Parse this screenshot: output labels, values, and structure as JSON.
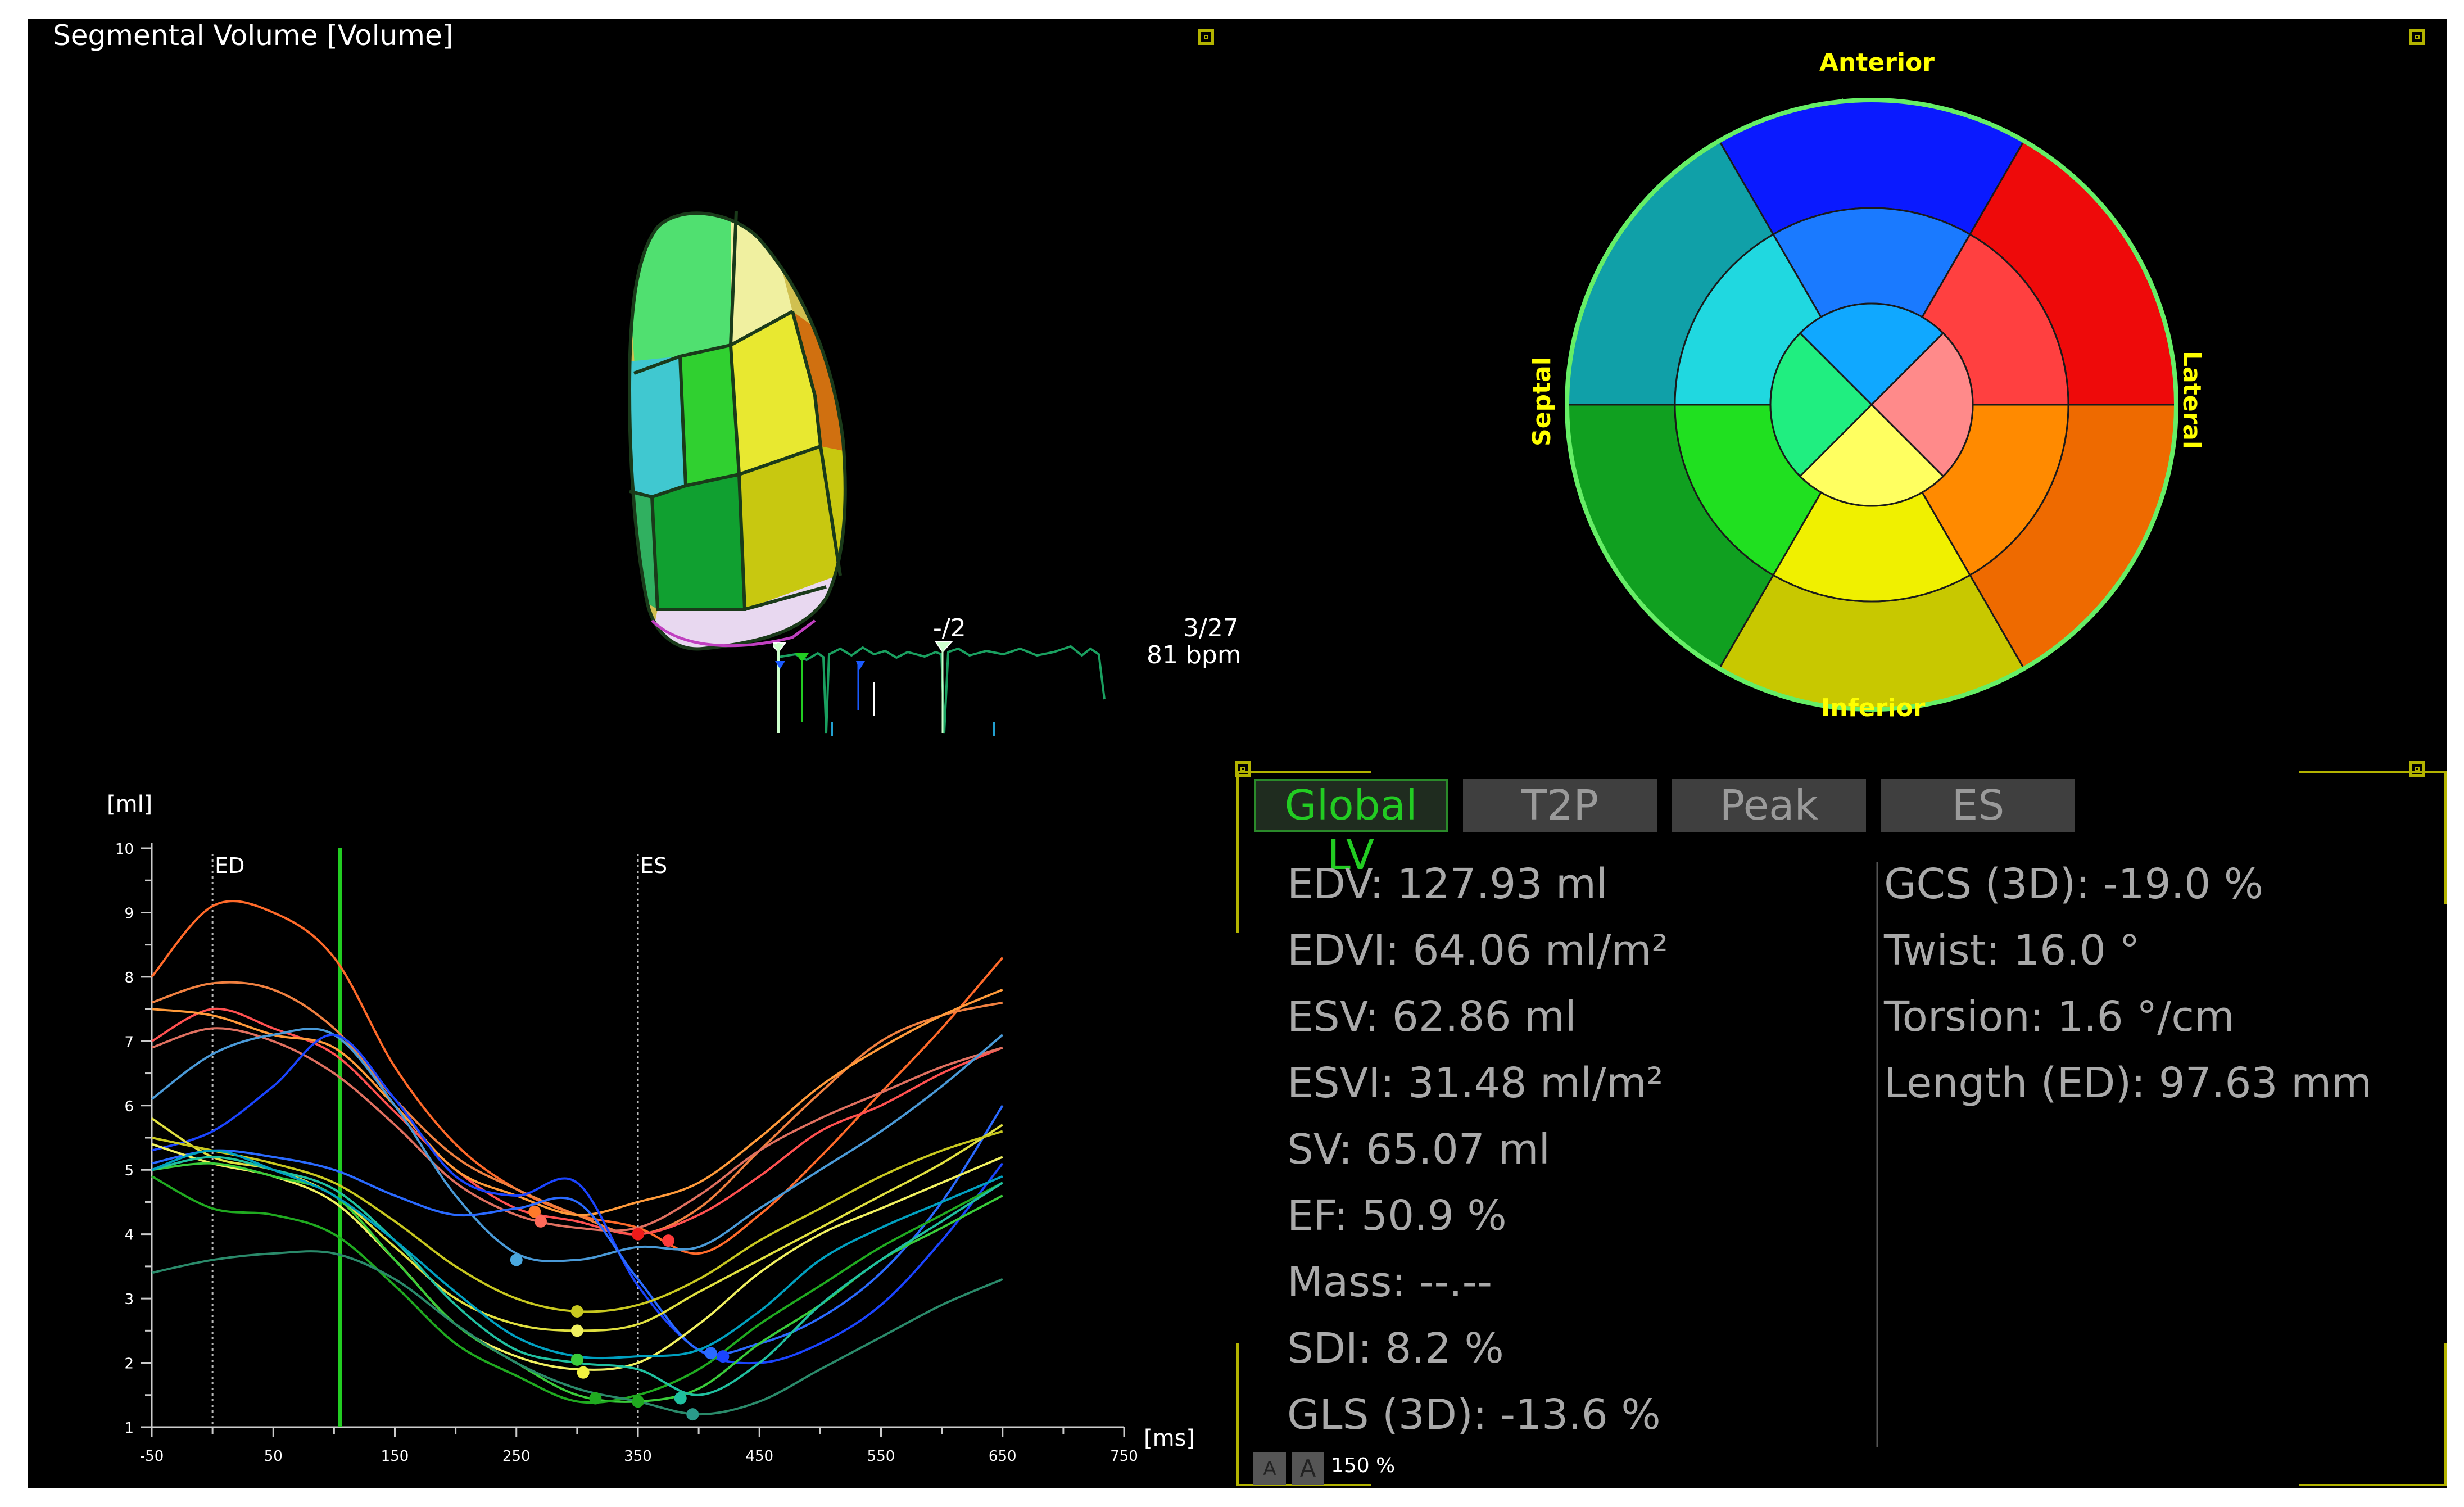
{
  "view": {
    "title": "Segmental Volume [Volume]"
  },
  "ecg": {
    "frame_label": "-/2",
    "frame": "3/27",
    "bpm": "81 bpm"
  },
  "bullseye": {
    "anterior": "Anterior",
    "inferior": "Inferior",
    "septal": "Septal",
    "lateral": "Lateral"
  },
  "chart_data": {
    "type": "line",
    "ylabel": "[ml]",
    "xlabel": "[ms]",
    "xlim": [
      -50,
      750
    ],
    "ylim": [
      1,
      10
    ],
    "x_ticks": [
      "-50",
      "50",
      "150",
      "250",
      "350",
      "450",
      "550",
      "650",
      "750"
    ],
    "y_ticks": [
      "1",
      "2",
      "3",
      "4",
      "5",
      "6",
      "7",
      "8",
      "9",
      "10"
    ],
    "markers": [
      {
        "label": "ED",
        "x": 0
      },
      {
        "label": "ES",
        "x": 350
      }
    ],
    "cursor_x": 105,
    "series": [
      {
        "color": "#ff6a2a",
        "x": [
          -50,
          0,
          50,
          100,
          150,
          200,
          250,
          300,
          350,
          400,
          450,
          500,
          550,
          600,
          650
        ],
        "y": [
          8.0,
          9.1,
          9.0,
          8.3,
          6.6,
          5.4,
          4.7,
          4.3,
          4.1,
          3.7,
          4.3,
          5.2,
          6.2,
          7.2,
          8.3
        ]
      },
      {
        "color": "#f08040",
        "x": [
          -50,
          0,
          50,
          100,
          150,
          200,
          250,
          300,
          350,
          400,
          450,
          500,
          550,
          600,
          650
        ],
        "y": [
          7.6,
          7.9,
          7.8,
          7.2,
          6.1,
          5.2,
          4.7,
          4.3,
          4.0,
          4.4,
          5.3,
          6.2,
          7.0,
          7.4,
          7.6
        ]
      },
      {
        "color": "#ff5050",
        "x": [
          -50,
          0,
          50,
          100,
          150,
          200,
          250,
          300,
          350,
          400,
          450,
          500,
          550,
          600,
          650
        ],
        "y": [
          7.0,
          7.5,
          7.2,
          6.8,
          5.9,
          5.0,
          4.4,
          4.2,
          4.0,
          4.3,
          4.9,
          5.6,
          6.0,
          6.5,
          6.9
        ]
      },
      {
        "color": "#ff9a3a",
        "x": [
          -50,
          0,
          50,
          100,
          150,
          200,
          250,
          300,
          350,
          400,
          450,
          500,
          550,
          600,
          650
        ],
        "y": [
          7.5,
          7.4,
          7.1,
          6.9,
          6.0,
          5.0,
          4.6,
          4.3,
          4.5,
          4.8,
          5.5,
          6.3,
          6.9,
          7.4,
          7.8
        ]
      },
      {
        "color": "#e07060",
        "x": [
          -50,
          0,
          50,
          100,
          150,
          200,
          250,
          300,
          350,
          400,
          450,
          500,
          550,
          600,
          650
        ],
        "y": [
          6.9,
          7.2,
          7.0,
          6.5,
          5.7,
          4.8,
          4.3,
          4.1,
          4.1,
          4.6,
          5.3,
          5.8,
          6.2,
          6.6,
          6.9
        ]
      },
      {
        "color": "#4a9ad8",
        "x": [
          -50,
          0,
          50,
          100,
          150,
          200,
          250,
          300,
          350,
          400,
          450,
          500,
          550,
          600,
          650
        ],
        "y": [
          6.1,
          6.8,
          7.1,
          7.1,
          6.0,
          4.6,
          3.7,
          3.6,
          3.8,
          3.8,
          4.4,
          5.0,
          5.6,
          6.3,
          7.1
        ]
      },
      {
        "color": "#1a44ff",
        "x": [
          -50,
          0,
          50,
          100,
          150,
          200,
          250,
          300,
          350,
          400,
          450,
          500,
          550,
          600,
          650
        ],
        "y": [
          5.3,
          5.6,
          6.3,
          7.1,
          6.1,
          4.9,
          4.6,
          4.8,
          3.2,
          2.2,
          2.0,
          2.3,
          2.9,
          3.9,
          5.1
        ]
      },
      {
        "color": "#2a6aff",
        "x": [
          -50,
          0,
          50,
          100,
          150,
          200,
          250,
          300,
          350,
          400,
          450,
          500,
          550,
          600,
          650
        ],
        "y": [
          5.1,
          5.3,
          5.2,
          5.0,
          4.6,
          4.3,
          4.4,
          4.5,
          3.3,
          2.2,
          2.3,
          2.7,
          3.4,
          4.5,
          6.0
        ]
      },
      {
        "color": "#e0e040",
        "x": [
          -50,
          0,
          50,
          100,
          150,
          200,
          250,
          300,
          350,
          400,
          450,
          500,
          550,
          600,
          650
        ],
        "y": [
          5.8,
          5.2,
          5.0,
          4.6,
          3.8,
          3.0,
          2.6,
          2.5,
          2.6,
          3.1,
          3.6,
          4.1,
          4.6,
          5.1,
          5.7
        ]
      },
      {
        "color": "#c8c820",
        "x": [
          -50,
          0,
          50,
          100,
          150,
          200,
          250,
          300,
          350,
          400,
          450,
          500,
          550,
          600,
          650
        ],
        "y": [
          5.5,
          5.3,
          5.1,
          4.8,
          4.2,
          3.5,
          3.0,
          2.8,
          2.9,
          3.3,
          3.9,
          4.4,
          4.9,
          5.3,
          5.6
        ]
      },
      {
        "color": "#f0f060",
        "x": [
          -50,
          0,
          50,
          100,
          150,
          200,
          250,
          300,
          350,
          400,
          450,
          500,
          550,
          600,
          650
        ],
        "y": [
          5.4,
          5.1,
          4.9,
          4.5,
          3.6,
          2.6,
          2.1,
          1.9,
          2.0,
          2.6,
          3.4,
          4.0,
          4.4,
          4.8,
          5.2
        ]
      },
      {
        "color": "#3acc3a",
        "x": [
          -50,
          0,
          50,
          100,
          150,
          200,
          250,
          300,
          350,
          400,
          450,
          500,
          550,
          600,
          650
        ],
        "y": [
          5.0,
          5.1,
          4.9,
          4.6,
          3.6,
          2.6,
          2.0,
          1.5,
          1.4,
          1.6,
          2.3,
          2.9,
          3.6,
          4.1,
          4.6
        ]
      },
      {
        "color": "#20aa20",
        "x": [
          -50,
          0,
          50,
          100,
          150,
          200,
          250,
          300,
          350,
          400,
          450,
          500,
          550,
          600,
          650
        ],
        "y": [
          4.9,
          4.4,
          4.3,
          4.0,
          3.2,
          2.3,
          1.8,
          1.4,
          1.5,
          1.9,
          2.6,
          3.2,
          3.8,
          4.3,
          4.8
        ]
      },
      {
        "color": "#20c0a0",
        "x": [
          -50,
          0,
          50,
          100,
          150,
          200,
          250,
          300,
          350,
          400,
          450,
          500,
          550,
          600,
          650
        ],
        "y": [
          5.0,
          5.2,
          5.0,
          4.7,
          3.9,
          2.9,
          2.2,
          2.0,
          1.9,
          1.5,
          2.0,
          2.9,
          3.6,
          4.2,
          4.8
        ]
      },
      {
        "color": "#2a8a6a",
        "x": [
          -50,
          0,
          50,
          100,
          150,
          200,
          250,
          300,
          350,
          400,
          450,
          500,
          550,
          600,
          650
        ],
        "y": [
          3.4,
          3.6,
          3.7,
          3.7,
          3.3,
          2.6,
          2.0,
          1.6,
          1.4,
          1.2,
          1.4,
          1.9,
          2.4,
          2.9,
          3.3
        ]
      },
      {
        "color": "#00a0c0",
        "x": [
          -50,
          0,
          50,
          100,
          150,
          200,
          250,
          300,
          350,
          400,
          450,
          500,
          550,
          600,
          650
        ],
        "y": [
          5.0,
          5.3,
          5.0,
          4.6,
          3.9,
          3.1,
          2.4,
          2.1,
          2.1,
          2.2,
          2.8,
          3.6,
          4.1,
          4.5,
          4.9
        ]
      }
    ],
    "points": [
      {
        "x": 250,
        "y": 3.6,
        "color": "#4aa8e0"
      },
      {
        "x": 265,
        "y": 4.35,
        "color": "#ff7a2a"
      },
      {
        "x": 270,
        "y": 4.2,
        "color": "#ff6a5a"
      },
      {
        "x": 300,
        "y": 2.8,
        "color": "#c8c820"
      },
      {
        "x": 300,
        "y": 2.5,
        "color": "#f0f060"
      },
      {
        "x": 300,
        "y": 2.05,
        "color": "#3acc3a"
      },
      {
        "x": 305,
        "y": 1.85,
        "color": "#f0f040"
      },
      {
        "x": 315,
        "y": 1.45,
        "color": "#20aa20"
      },
      {
        "x": 350,
        "y": 4.0,
        "color": "#ee1a1a"
      },
      {
        "x": 350,
        "y": 1.4,
        "color": "#20aa20"
      },
      {
        "x": 375,
        "y": 3.9,
        "color": "#ff3a3a"
      },
      {
        "x": 385,
        "y": 1.45,
        "color": "#20c0a0"
      },
      {
        "x": 395,
        "y": 1.2,
        "color": "#2a9a8a"
      },
      {
        "x": 410,
        "y": 2.15,
        "color": "#2a6aff"
      },
      {
        "x": 420,
        "y": 2.1,
        "color": "#1a44ff"
      }
    ]
  },
  "tabs": [
    {
      "label": "Global LV",
      "active": true
    },
    {
      "label": "T2P",
      "active": false
    },
    {
      "label": "Peak",
      "active": false
    },
    {
      "label": "ES",
      "active": false
    }
  ],
  "metrics_left": [
    "EDV: 127.93 ml",
    "EDVI: 64.06 ml/m²",
    "ESV: 62.86 ml",
    "ESVI: 31.48 ml/m²",
    "SV: 65.07 ml",
    "EF: 50.9 %",
    "Mass: --.--",
    "SDI: 8.2 %",
    "GLS (3D): -13.6 %"
  ],
  "metrics_right": [
    "GCS (3D): -19.0 %",
    "Twist: 16.0 °",
    "Torsion: 1.6 °/cm",
    "Length (ED): 97.63 mm"
  ],
  "footer": {
    "font_small": "A",
    "font_large": "A",
    "zoom": "150 %"
  },
  "colors": {
    "accent_green": "#22cc22",
    "frame_yellow": "#b3b300",
    "label_yellow": "#ffff00"
  }
}
